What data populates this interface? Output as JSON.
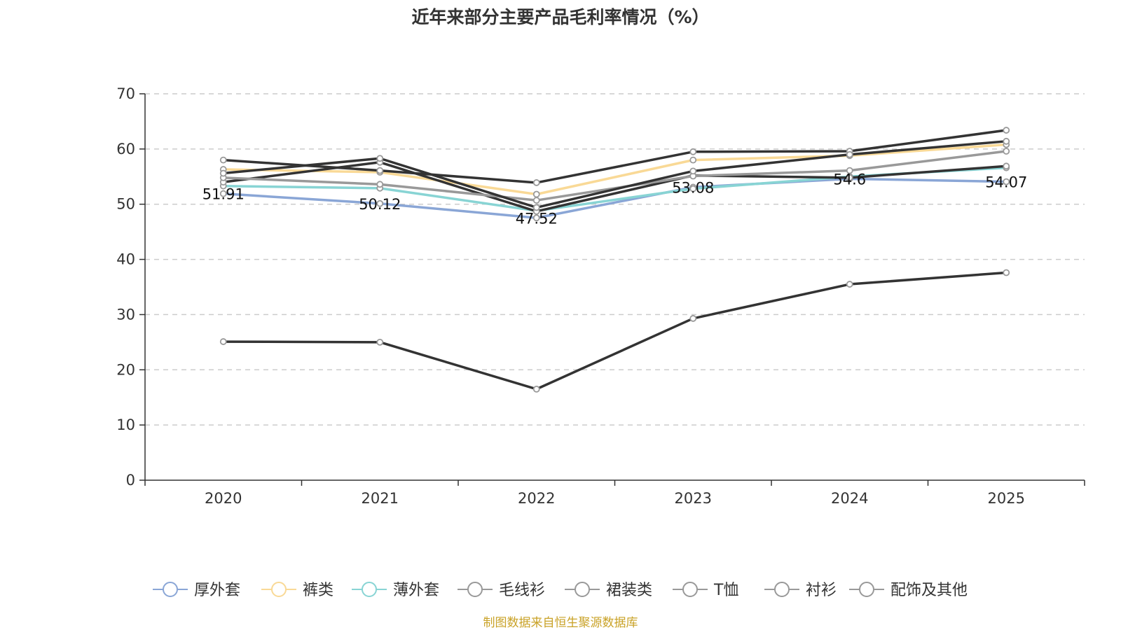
{
  "title": "近年来部分主要产品毛利率情况（%）",
  "source": "制图数据来自恒生聚源数据库",
  "chart_data": {
    "type": "line",
    "title": "近年来部分主要产品毛利率情况（%）",
    "xlabel": "",
    "ylabel": "",
    "categories": [
      "2020",
      "2021",
      "2022",
      "2023",
      "2024",
      "2025"
    ],
    "ylim": [
      0,
      70
    ],
    "yticks": [
      "0",
      "10",
      "20",
      "30",
      "40",
      "50",
      "60",
      "70"
    ],
    "grid": "horizontal dashed",
    "legend_position": "bottom",
    "series": [
      {
        "name": "厚外套",
        "color": "#8aa6d6",
        "values": [
          51.91,
          50.12,
          47.52,
          53.08,
          54.6,
          54.07
        ],
        "labels": [
          "51.91",
          "50.12",
          "47.52",
          "53.08",
          "54.6",
          "54.07"
        ]
      },
      {
        "name": "裤类",
        "color": "#f9d996",
        "values": [
          56.3,
          55.8,
          51.8,
          58.0,
          58.8,
          60.8
        ]
      },
      {
        "name": "薄外套",
        "color": "#88d4d4",
        "values": [
          53.3,
          52.9,
          48.8,
          52.8,
          55.0,
          56.6
        ]
      },
      {
        "name": "毛线衫",
        "color": "#333333",
        "values": [
          54.0,
          57.6,
          48.7,
          55.2,
          54.8,
          56.9
        ]
      },
      {
        "name": "裙装类",
        "color": "#999999",
        "values": [
          54.8,
          53.6,
          50.7,
          55.1,
          56.1,
          59.6
        ]
      },
      {
        "name": "T恤",
        "color": "#333333",
        "values": [
          58.0,
          56.1,
          53.9,
          59.5,
          59.6,
          63.4
        ]
      },
      {
        "name": "衬衫",
        "color": "#333333",
        "values": [
          55.6,
          58.3,
          49.4,
          56.0,
          59.0,
          61.4
        ]
      },
      {
        "name": "配饰及其他",
        "color": "#333333",
        "values": [
          25.1,
          25.0,
          16.5,
          29.3,
          35.5,
          37.6
        ]
      }
    ]
  }
}
